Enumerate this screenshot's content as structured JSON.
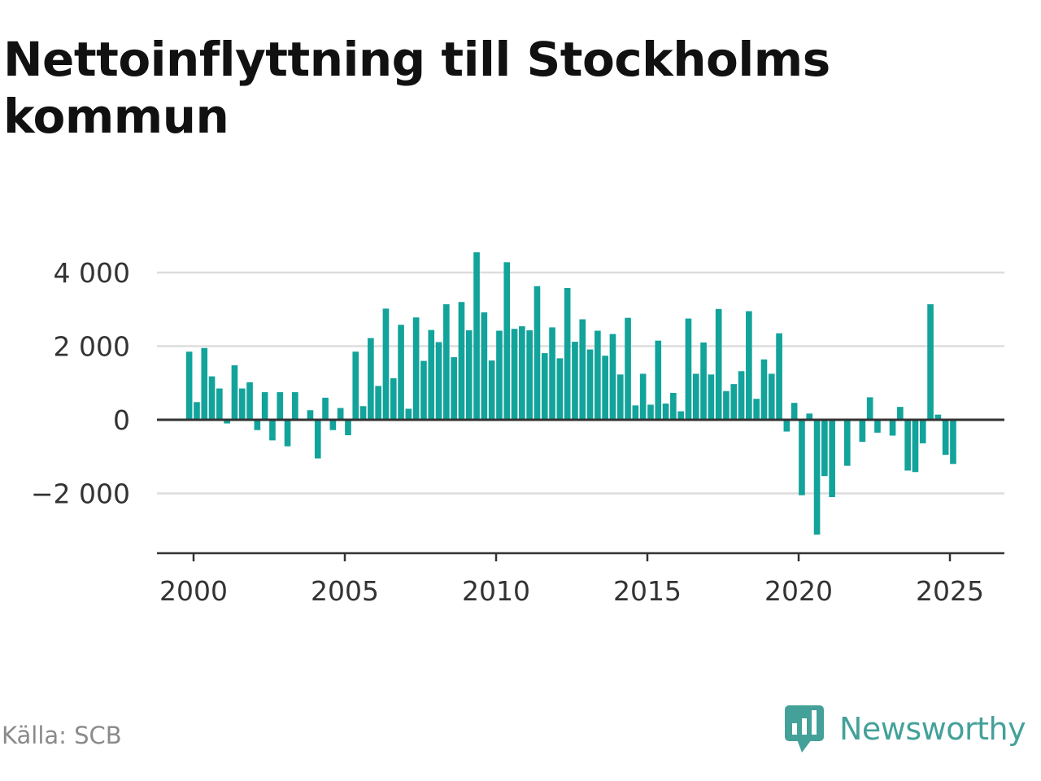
{
  "title": "Nettoinflyttning till Stockholms kommun",
  "source": "Källa: SCB",
  "brand": {
    "name": "Newsworthy",
    "logo_icon": "chart-speech-bubble-icon",
    "color": "#44a19a"
  },
  "chart_data": {
    "type": "bar",
    "bar_color": "#12a39b",
    "x_unit": "quarter",
    "x_ticks": [
      2000,
      2005,
      2010,
      2015,
      2020,
      2025
    ],
    "y_ticks": [
      4000,
      2000,
      0,
      -2000
    ],
    "y_tick_labels": [
      "4 000",
      "2 000",
      "0",
      "−2 000"
    ],
    "ylim": [
      -3600,
      4600
    ],
    "xlim": [
      1998.8,
      2026.9
    ],
    "grid": true,
    "legend": "none",
    "categories": [
      "2000 Q1",
      "2000 Q2",
      "2000 Q3",
      "2000 Q4",
      "2001 Q1",
      "2001 Q2",
      "2001 Q3",
      "2001 Q4",
      "2002 Q1",
      "2002 Q2",
      "2002 Q3",
      "2002 Q4",
      "2003 Q1",
      "2003 Q2",
      "2003 Q3",
      "2003 Q4",
      "2004 Q1",
      "2004 Q2",
      "2004 Q3",
      "2004 Q4",
      "2005 Q1",
      "2005 Q2",
      "2005 Q3",
      "2005 Q4",
      "2006 Q1",
      "2006 Q2",
      "2006 Q3",
      "2006 Q4",
      "2007 Q1",
      "2007 Q2",
      "2007 Q3",
      "2007 Q4",
      "2008 Q1",
      "2008 Q2",
      "2008 Q3",
      "2008 Q4",
      "2009 Q1",
      "2009 Q2",
      "2009 Q3",
      "2009 Q4",
      "2010 Q1",
      "2010 Q2",
      "2010 Q3",
      "2010 Q4",
      "2011 Q1",
      "2011 Q2",
      "2011 Q3",
      "2011 Q4",
      "2012 Q1",
      "2012 Q2",
      "2012 Q3",
      "2012 Q4",
      "2013 Q1",
      "2013 Q2",
      "2013 Q3",
      "2013 Q4",
      "2014 Q1",
      "2014 Q2",
      "2014 Q3",
      "2014 Q4",
      "2015 Q1",
      "2015 Q2",
      "2015 Q3",
      "2015 Q4",
      "2016 Q1",
      "2016 Q2",
      "2016 Q3",
      "2016 Q4",
      "2017 Q1",
      "2017 Q2",
      "2017 Q3",
      "2017 Q4",
      "2018 Q1",
      "2018 Q2",
      "2018 Q3",
      "2018 Q4",
      "2019 Q1",
      "2019 Q2",
      "2019 Q3",
      "2019 Q4",
      "2020 Q1",
      "2020 Q2",
      "2020 Q3",
      "2020 Q4",
      "2021 Q1",
      "2021 Q2",
      "2021 Q3",
      "2021 Q4",
      "2022 Q1",
      "2022 Q2",
      "2022 Q3",
      "2022 Q4",
      "2023 Q1",
      "2023 Q2",
      "2023 Q3",
      "2023 Q4",
      "2024 Q1",
      "2024 Q2",
      "2024 Q3",
      "2024 Q4",
      "2025 Q1",
      "2025 Q2"
    ],
    "values": [
      1850,
      480,
      1950,
      1180,
      850,
      -100,
      1480,
      850,
      1020,
      -280,
      750,
      -560,
      750,
      -720,
      750,
      0,
      260,
      -1050,
      600,
      -280,
      320,
      -420,
      1850,
      370,
      2220,
      920,
      3020,
      1130,
      2580,
      300,
      2780,
      1600,
      2440,
      2110,
      3140,
      1700,
      3200,
      2430,
      4550,
      2920,
      1610,
      2420,
      4280,
      2470,
      2540,
      2430,
      3630,
      1810,
      2510,
      1670,
      3580,
      2120,
      2730,
      1910,
      2420,
      1740,
      2330,
      1230,
      2770,
      390,
      1250,
      410,
      2150,
      440,
      730,
      230,
      2750,
      1250,
      2100,
      1230,
      3010,
      780,
      970,
      1320,
      2950,
      570,
      1640,
      1250,
      2350,
      -320,
      460,
      -2050,
      170,
      -3120,
      -1530,
      -2100,
      0,
      -1250,
      0,
      -600,
      610,
      -350,
      0,
      -430,
      350,
      -1380,
      -1420,
      -640,
      3140,
      140,
      -950,
      -1200
    ]
  }
}
